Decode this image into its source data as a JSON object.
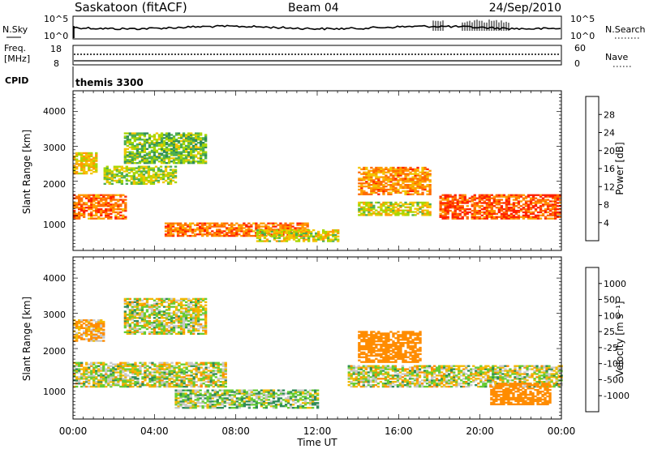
{
  "header": {
    "station": "Saskatoon (fitACF)",
    "beam": "Beam 04",
    "date": "24/Sep/2010"
  },
  "summary": {
    "nsky_label": "N.Sky",
    "nsky_ticks": [
      "10^5",
      "10^0"
    ],
    "nsearch_label": "N.Search",
    "nsearch_ticks": [
      "10^5",
      "10^0"
    ],
    "freq_label": [
      "Freq.",
      "[MHz]"
    ],
    "freq_ticks": [
      "18",
      "8"
    ],
    "nave_label": "Nave",
    "nave_ticks": [
      "60",
      "0"
    ],
    "cpid_label": "CPID",
    "cpid_value": "themis 3300"
  },
  "colors": {
    "power_scale": [
      "#1a1aff",
      "#1a3ec8",
      "#2e8b57",
      "#4caf50",
      "#a8d600",
      "#f2c500",
      "#ff9a00",
      "#ff6a00",
      "#ff2000"
    ],
    "velocity_scale": [
      "#1a1aff",
      "#1a50c0",
      "#2e8b57",
      "#66cc33",
      "#c8c8c8",
      "#f2b800",
      "#ff8c00",
      "#ff5000",
      "#ff0000"
    ]
  },
  "chart_data": [
    {
      "type": "heatmap",
      "title": "",
      "variable": "Power",
      "ylabel": "Slant Range [km]",
      "yticks": [
        "1000",
        "2000",
        "3000",
        "4000"
      ],
      "ylim": [
        0,
        4600
      ],
      "x": [
        "00:00",
        "04:00",
        "08:00",
        "12:00",
        "16:00",
        "20:00",
        "00:00"
      ],
      "colorbar": {
        "label": "Power [dB]",
        "ticks": [
          "4",
          "8",
          "12",
          "16",
          "20",
          "24",
          "28"
        ],
        "range": [
          0,
          32
        ]
      },
      "regions": [
        {
          "t": [
            0.0,
            2.6
          ],
          "range_km": [
            900,
            1600
          ],
          "value_db": 26
        },
        {
          "t": [
            0.0,
            1.2
          ],
          "range_km": [
            2200,
            2800
          ],
          "value_db": 20
        },
        {
          "t": [
            1.5,
            5.0
          ],
          "range_km": [
            1900,
            2400
          ],
          "value_db": 16
        },
        {
          "t": [
            2.5,
            6.5
          ],
          "range_km": [
            2500,
            3400
          ],
          "value_db": 14
        },
        {
          "t": [
            4.5,
            11.5
          ],
          "range_km": [
            400,
            800
          ],
          "value_db": 26
        },
        {
          "t": [
            9.0,
            13.0
          ],
          "range_km": [
            250,
            600
          ],
          "value_db": 18
        },
        {
          "t": [
            14.0,
            17.5
          ],
          "range_km": [
            1600,
            2400
          ],
          "value_db": 24
        },
        {
          "t": [
            14.0,
            17.5
          ],
          "range_km": [
            1000,
            1400
          ],
          "value_db": 18
        },
        {
          "t": [
            18.0,
            24.0
          ],
          "range_km": [
            900,
            1600
          ],
          "value_db": 28
        }
      ]
    },
    {
      "type": "heatmap",
      "title": "",
      "variable": "Velocity",
      "ylabel": "Slant Range [km]",
      "yticks": [
        "1000",
        "2000",
        "3000",
        "4000"
      ],
      "ylim": [
        0,
        4600
      ],
      "x": [
        "00:00",
        "04:00",
        "08:00",
        "12:00",
        "16:00",
        "20:00",
        "00:00"
      ],
      "xlabel": "Time UT",
      "colorbar": {
        "label": "Velocity [m s⁻¹]",
        "ticks": [
          "1000",
          "500",
          "100",
          "25",
          "-25",
          "-100",
          "-500",
          "-1000"
        ],
        "range": [
          -1500,
          1500
        ]
      },
      "regions": [
        {
          "t": [
            0.0,
            7.5
          ],
          "range_km": [
            900,
            1600
          ],
          "value_ms": 0
        },
        {
          "t": [
            2.5,
            6.5
          ],
          "range_km": [
            2400,
            3400
          ],
          "value_ms": 0
        },
        {
          "t": [
            0.0,
            1.5
          ],
          "range_km": [
            2200,
            2800
          ],
          "value_ms": -100
        },
        {
          "t": [
            5.0,
            12.0
          ],
          "range_km": [
            300,
            800
          ],
          "value_ms": 50
        },
        {
          "t": [
            14.0,
            17.0
          ],
          "range_km": [
            1600,
            2500
          ],
          "value_ms": -250
        },
        {
          "t": [
            13.5,
            24.0
          ],
          "range_km": [
            900,
            1500
          ],
          "value_ms": 0
        },
        {
          "t": [
            20.5,
            23.5
          ],
          "range_km": [
            400,
            1000
          ],
          "value_ms": -250
        }
      ]
    }
  ]
}
